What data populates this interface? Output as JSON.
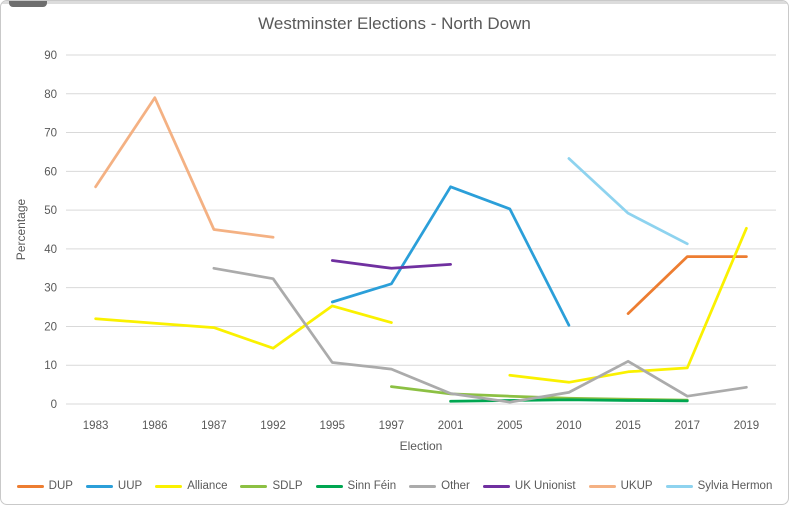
{
  "window": {
    "title": "Westminster Elections - North Down"
  },
  "chart_data": {
    "type": "line",
    "title": "Westminster Elections - North Down",
    "xlabel": "Election",
    "ylabel": "Percentage",
    "ylim": [
      0,
      90
    ],
    "ytick_step": 10,
    "grid": true,
    "legend_position": "bottom",
    "categories": [
      "1983",
      "1986",
      "1987",
      "1992",
      "1995",
      "1997",
      "2001",
      "2005",
      "2010",
      "2015",
      "2017",
      "2019"
    ],
    "series": [
      {
        "name": "DUP",
        "color": "#ED7D31",
        "values": [
          null,
          null,
          null,
          null,
          null,
          null,
          null,
          null,
          null,
          23.3,
          38,
          38
        ]
      },
      {
        "name": "UUP",
        "color": "#2B9FD9",
        "values": [
          null,
          null,
          null,
          null,
          26.3,
          31,
          56,
          50.3,
          20.3,
          null,
          null,
          null
        ]
      },
      {
        "name": "Alliance",
        "color": "#FAF100",
        "values": [
          22,
          20.8,
          19.7,
          14.4,
          25.3,
          21,
          null,
          7.4,
          5.6,
          8.3,
          9.3,
          45.3
        ]
      },
      {
        "name": "SDLP",
        "color": "#8CC043",
        "values": [
          null,
          null,
          null,
          null,
          null,
          4.5,
          2.6,
          2,
          1.5,
          1.2,
          1,
          null
        ]
      },
      {
        "name": "Sinn Féin",
        "color": "#00A651",
        "values": [
          null,
          null,
          null,
          null,
          null,
          null,
          0.7,
          0.9,
          1.1,
          0.9,
          0.8,
          null
        ]
      },
      {
        "name": "Other",
        "color": "#ABABAB",
        "values": [
          null,
          null,
          35,
          32.3,
          10.7,
          9,
          2.7,
          0.5,
          3,
          11,
          2,
          4.3
        ]
      },
      {
        "name": "UK Unionist",
        "color": "#7030A0",
        "values": [
          null,
          null,
          null,
          null,
          37,
          35,
          36,
          null,
          null,
          null,
          null,
          null
        ]
      },
      {
        "name": "UKUP",
        "color": "#F4B183",
        "values": [
          56,
          79,
          45,
          43,
          null,
          null,
          null,
          null,
          null,
          null,
          null,
          null
        ]
      },
      {
        "name": "Sylvia Hermon",
        "color": "#8ED3EF",
        "values": [
          null,
          null,
          null,
          null,
          null,
          null,
          null,
          null,
          63.3,
          49.2,
          41.3,
          null
        ]
      }
    ]
  }
}
